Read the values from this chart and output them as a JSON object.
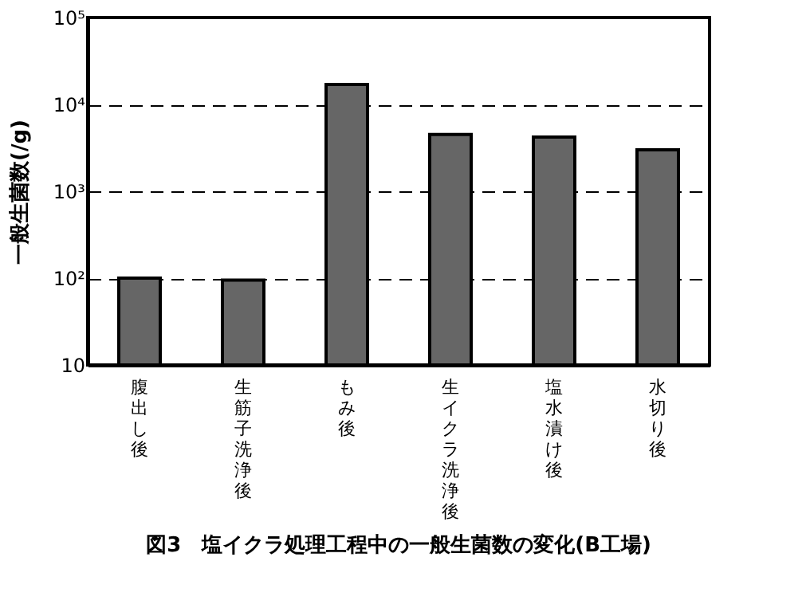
{
  "chart_data": {
    "type": "bar",
    "title": "図3　塩イクラ処理工程中の一般生菌数の変化(B工場)",
    "ylabel": "一般生菌数(/g)",
    "categories": [
      "腹出し後",
      "生筋子洗浄後",
      "もみ後",
      "生イクラ洗浄後",
      "塩水漬け後",
      "水切り後"
    ],
    "values": [
      100,
      95,
      17000,
      4500,
      4200,
      3000
    ],
    "color": "#666666",
    "log": "y",
    "ylim": [
      10,
      100000
    ],
    "yticks": [
      10,
      {
        "value": 100,
        "label": "10²"
      },
      {
        "value": 1000,
        "label": "10³"
      },
      {
        "value": 10000,
        "label": "10⁴"
      },
      {
        "value": 100000,
        "label": "10⁵"
      }
    ],
    "grid": "y"
  }
}
